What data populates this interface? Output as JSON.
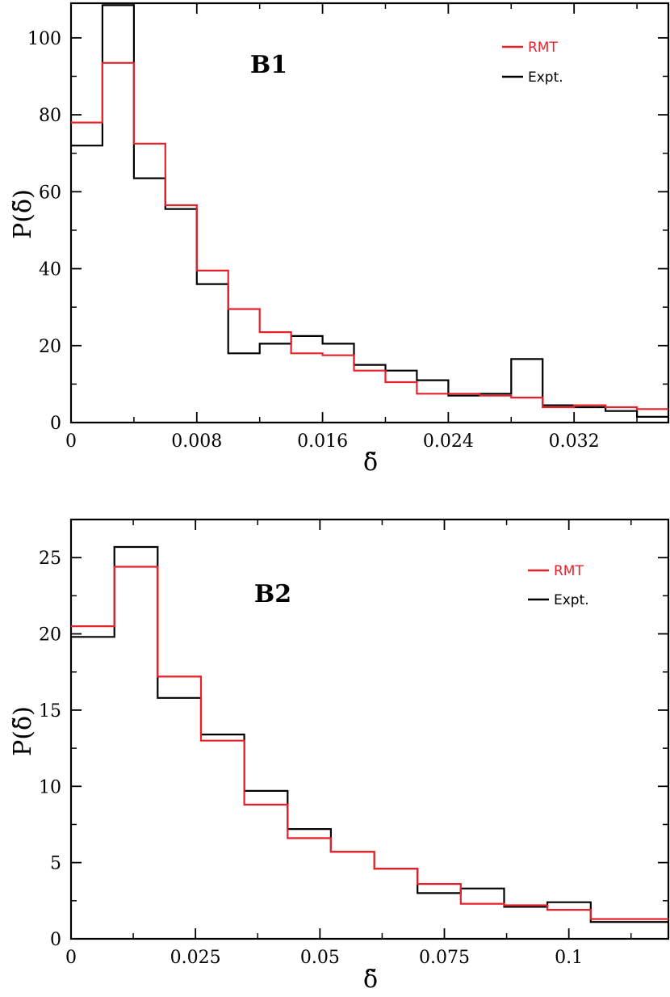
{
  "chart_data": [
    {
      "type": "line",
      "step": true,
      "title": "B1",
      "xlabel": "δ̃",
      "ylabel": "P(δ̃)",
      "xlim": [
        0,
        0.038
      ],
      "ylim": [
        0,
        109
      ],
      "xticks": [
        0,
        0.008,
        0.016,
        0.024,
        0.032
      ],
      "xtick_labels": [
        "0",
        "0.008",
        "0.016",
        "0.024",
        "0.032"
      ],
      "yticks": [
        0,
        20,
        40,
        60,
        80,
        100
      ],
      "ytick_labels": [
        "0",
        "20",
        "40",
        "60",
        "80",
        "100"
      ],
      "legend_position": "top-right",
      "bin_edges": [
        0,
        0.002,
        0.004,
        0.006,
        0.008,
        0.01,
        0.012,
        0.014,
        0.016,
        0.018,
        0.02,
        0.022,
        0.024,
        0.026,
        0.028,
        0.03,
        0.032,
        0.034,
        0.036,
        0.038
      ],
      "series": [
        {
          "name": "RMT",
          "color": "#e8202a",
          "values": [
            78,
            93.5,
            72.5,
            56.5,
            39.5,
            29.5,
            23.5,
            18,
            17.5,
            13.5,
            10.5,
            7.5,
            7.5,
            7,
            6.5,
            4,
            4.5,
            4,
            3.5
          ]
        },
        {
          "name": "Expt.",
          "color": "#000000",
          "values": [
            72,
            108.5,
            63.5,
            55.5,
            36,
            18,
            20.5,
            22.5,
            20.5,
            15,
            13.5,
            11,
            7,
            7.5,
            16.5,
            4.5,
            4,
            3,
            1.5
          ]
        }
      ]
    },
    {
      "type": "line",
      "step": true,
      "title": "B2",
      "xlabel": "δ̃",
      "ylabel": "P(δ̃)",
      "xlim": [
        0,
        0.12
      ],
      "ylim": [
        0,
        27.5
      ],
      "xticks": [
        0,
        0.025,
        0.05,
        0.075,
        0.1
      ],
      "xtick_labels": [
        "0",
        "0.025",
        "0.05",
        "0.075",
        "0.1"
      ],
      "yticks": [
        0,
        5,
        10,
        15,
        20,
        25
      ],
      "ytick_labels": [
        "0",
        "5",
        "10",
        "15",
        "20",
        "25"
      ],
      "legend_position": "top-right",
      "bin_edges": [
        0,
        0.0087,
        0.0174,
        0.0261,
        0.0348,
        0.0435,
        0.0522,
        0.0609,
        0.0696,
        0.0783,
        0.087,
        0.0957,
        0.1044,
        0.12
      ],
      "series": [
        {
          "name": "RMT",
          "color": "#e8202a",
          "values": [
            20.5,
            24.4,
            17.2,
            13,
            8.8,
            6.6,
            5.7,
            4.6,
            3.6,
            2.3,
            2.2,
            1.9,
            1.3
          ]
        },
        {
          "name": "Expt.",
          "color": "#000000",
          "values": [
            19.8,
            25.7,
            15.8,
            13.4,
            9.7,
            7.2,
            5.7,
            4.6,
            3.0,
            3.3,
            2.1,
            2.4,
            1.1
          ]
        }
      ]
    }
  ],
  "legend": {
    "top": [
      {
        "label": "RMT",
        "color": "#e8202a"
      },
      {
        "label": "Expt.",
        "color": "#000000"
      }
    ],
    "bottom": [
      {
        "label": "RMT",
        "color": "#e8202a"
      },
      {
        "label": "Expt.",
        "color": "#000000"
      }
    ]
  }
}
